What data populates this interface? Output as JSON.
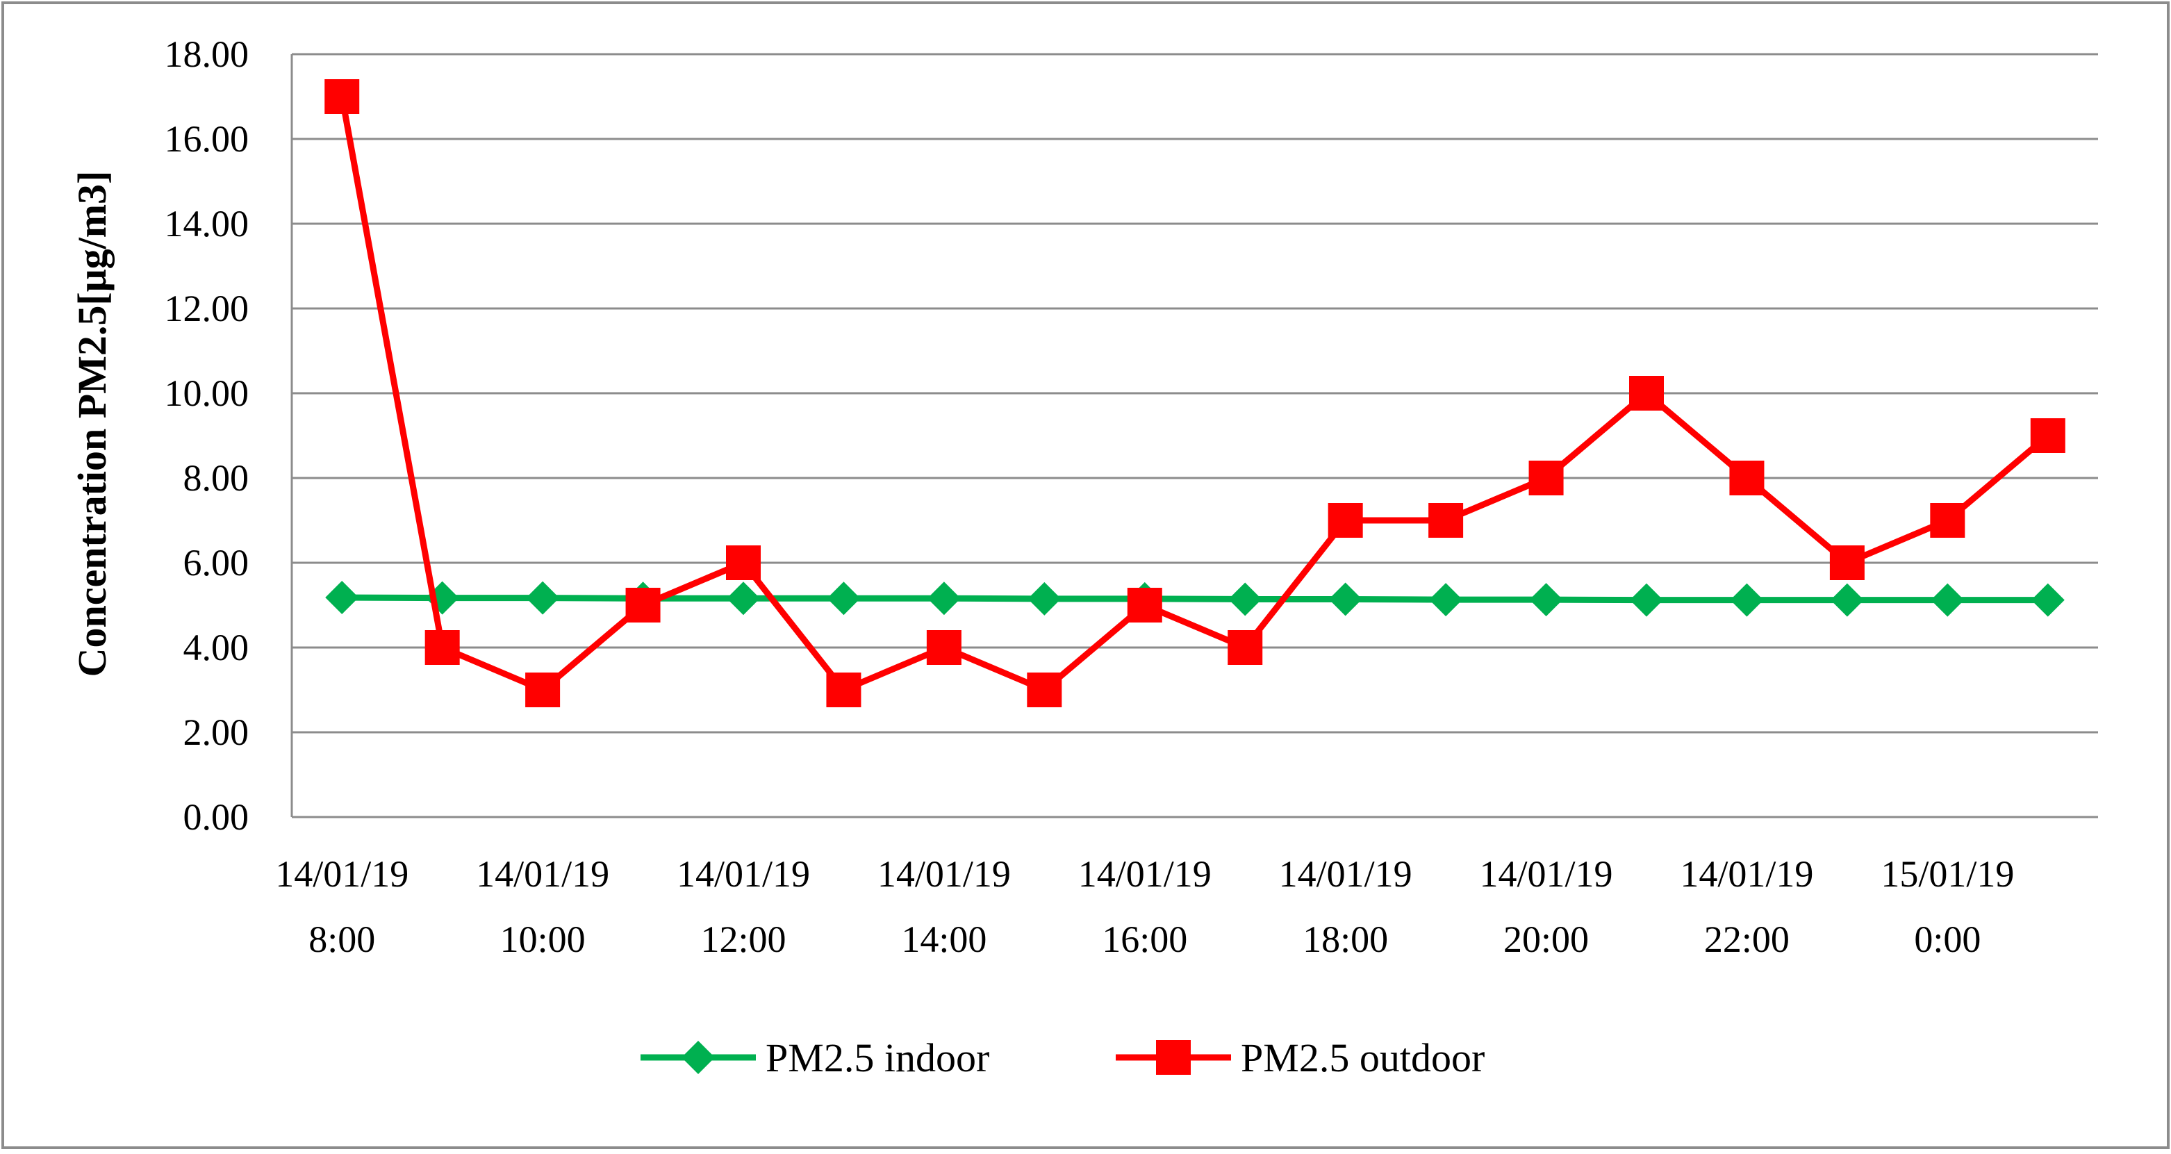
{
  "chart_data": {
    "type": "line",
    "title": "",
    "xlabel": "",
    "ylabel": "Concentration PM2.5[μg/m3]",
    "ylim": [
      0,
      18
    ],
    "y_ticks": [
      "0.00",
      "2.00",
      "4.00",
      "6.00",
      "8.00",
      "10.00",
      "12.00",
      "14.00",
      "16.00",
      "18.00"
    ],
    "x": [
      "14/01/19 8:00",
      "14/01/19 9:00",
      "14/01/19 10:00",
      "14/01/19 11:00",
      "14/01/19 12:00",
      "14/01/19 13:00",
      "14/01/19 14:00",
      "14/01/19 15:00",
      "14/01/19 16:00",
      "14/01/19 17:00",
      "14/01/19 18:00",
      "14/01/19 19:00",
      "14/01/19 20:00",
      "14/01/19 21:00",
      "14/01/19 22:00",
      "14/01/19 23:00",
      "15/01/19 0:00",
      "15/01/19 1:00"
    ],
    "x_tick_labels": [
      {
        "index": 0,
        "line1": "14/01/19",
        "line2": "8:00"
      },
      {
        "index": 2,
        "line1": "14/01/19",
        "line2": "10:00"
      },
      {
        "index": 4,
        "line1": "14/01/19",
        "line2": "12:00"
      },
      {
        "index": 6,
        "line1": "14/01/19",
        "line2": "14:00"
      },
      {
        "index": 8,
        "line1": "14/01/19",
        "line2": "16:00"
      },
      {
        "index": 10,
        "line1": "14/01/19",
        "line2": "18:00"
      },
      {
        "index": 12,
        "line1": "14/01/19",
        "line2": "20:00"
      },
      {
        "index": 14,
        "line1": "14/01/19",
        "line2": "22:00"
      },
      {
        "index": 16,
        "line1": "15/01/19",
        "line2": "0:00"
      }
    ],
    "series": [
      {
        "name": "PM2.5 indoor",
        "color": "#00b050",
        "marker": "diamond",
        "values": [
          5.18,
          5.17,
          5.17,
          5.16,
          5.16,
          5.16,
          5.16,
          5.15,
          5.15,
          5.14,
          5.14,
          5.13,
          5.13,
          5.12,
          5.12,
          5.12,
          5.12,
          5.12
        ]
      },
      {
        "name": "PM2.5 outdoor",
        "color": "#ff0000",
        "marker": "square",
        "values": [
          17,
          4,
          3,
          5,
          6,
          3,
          4,
          3,
          5,
          4,
          7,
          7,
          8,
          10,
          8,
          6,
          7,
          9
        ]
      }
    ],
    "grid": true,
    "legend_position": "bottom"
  }
}
